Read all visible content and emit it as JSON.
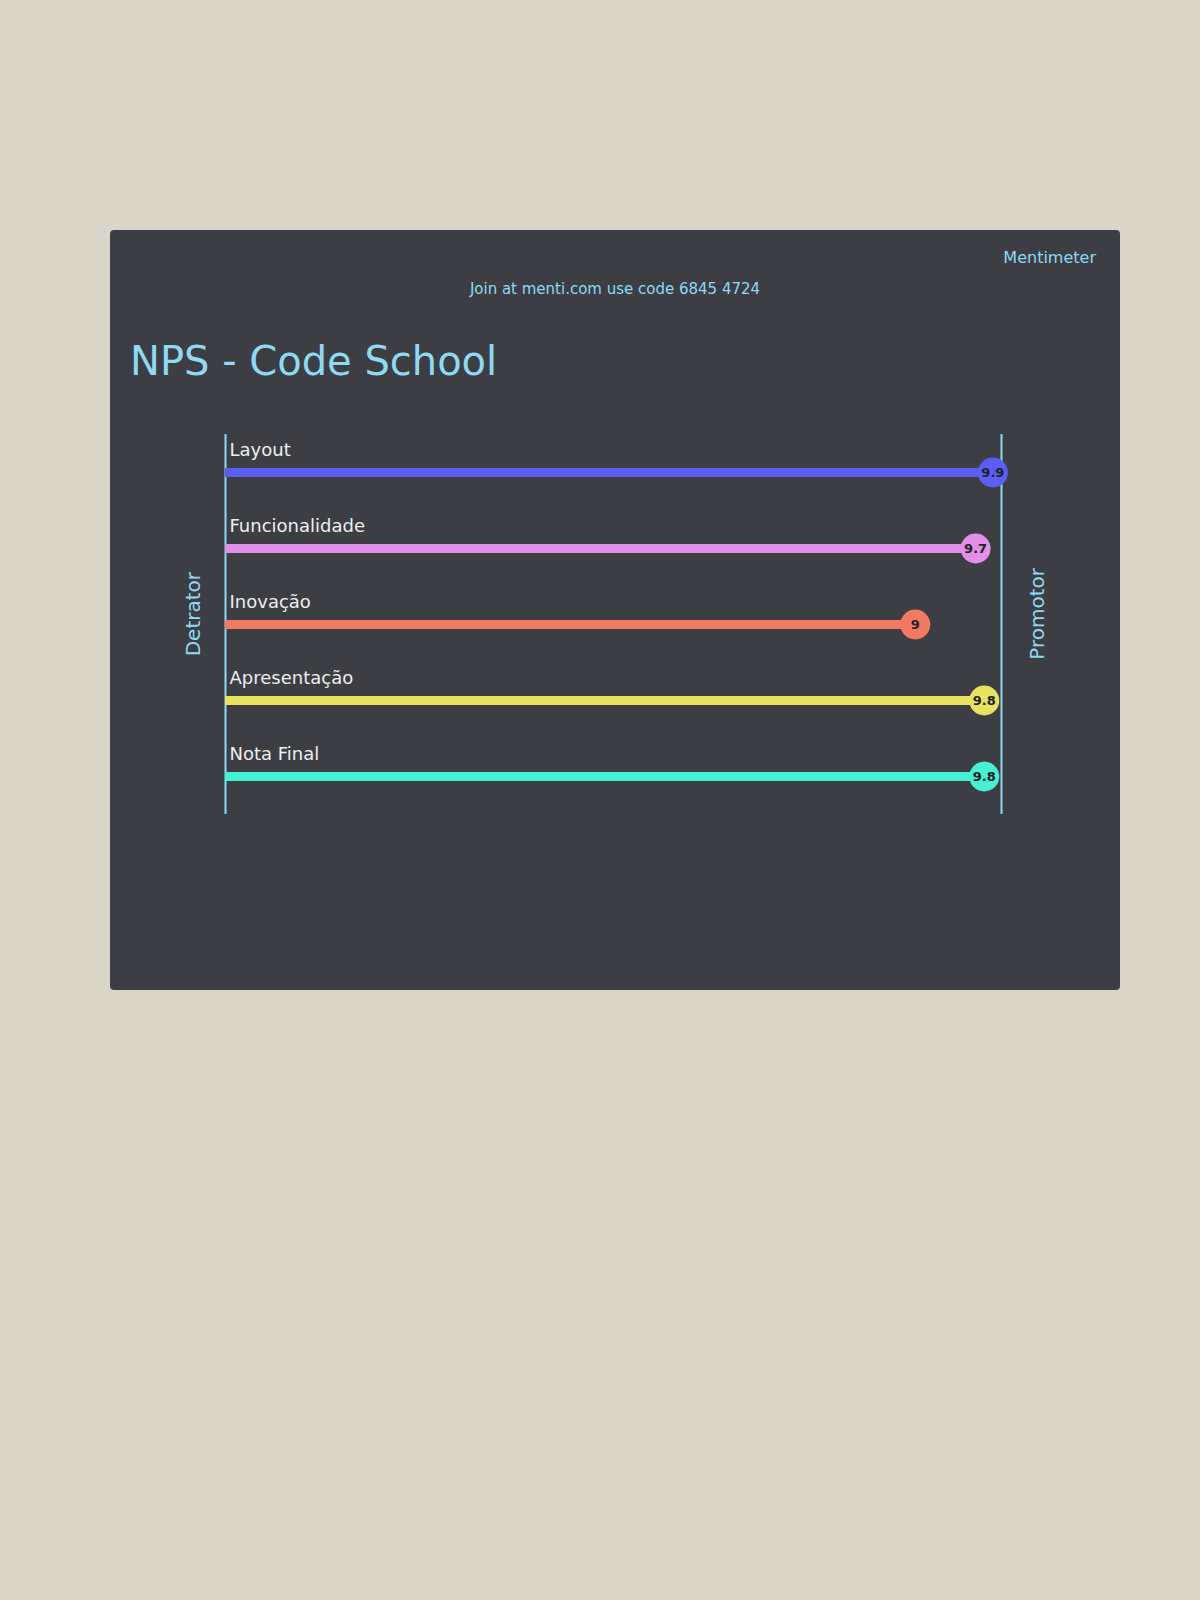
{
  "chart_data": {
    "type": "bar",
    "orientation": "horizontal",
    "title": "NPS - Code School",
    "subtitle": "Join at menti.com use code 6845 4724",
    "brand": "Mentimeter",
    "axis_labels": {
      "min": "Detrator",
      "max": "Promotor"
    },
    "categories": [
      "Layout",
      "Funcionalidade",
      "Inovação",
      "Apresentação",
      "Nota Final"
    ],
    "values": [
      9.9,
      9.7,
      9,
      9.8,
      9.8
    ],
    "colors": [
      "#5a5ef2",
      "#e28fe8",
      "#f27a62",
      "#e8e262",
      "#46f0d2"
    ],
    "xlim": [
      1,
      10
    ],
    "tick_labels": false,
    "data_labels": true
  }
}
